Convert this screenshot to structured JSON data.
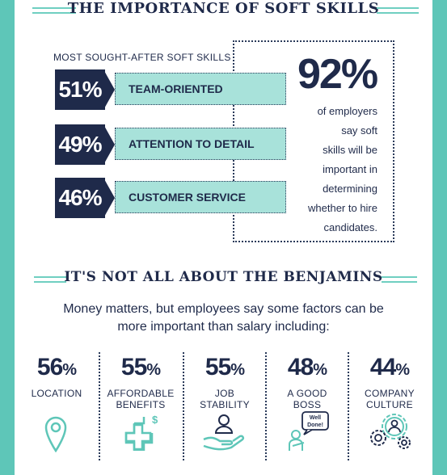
{
  "section1": {
    "title": "THE IMPORTANCE OF SOFT SKILLS"
  },
  "skills_label": "MOST SOUGHT-AFTER SOFT SKILLS",
  "chart_data": {
    "type": "bar",
    "categories": [
      "TEAM-ORIENTED",
      "ATTENTION TO DETAIL",
      "CUSTOMER SERVICE"
    ],
    "values": [
      51,
      49,
      46
    ],
    "value_labels": [
      "51%",
      "49%",
      "46%"
    ],
    "title": "MOST SOUGHT-AFTER SOFT SKILLS"
  },
  "callout": {
    "big": "92%",
    "lines": [
      "of employers",
      "say soft",
      "skills will be",
      "important in",
      "determining",
      "whether to hire",
      "candidates."
    ]
  },
  "section2": {
    "title": "IT'S NOT ALL ABOUT THE BENJAMINS",
    "intro_line1": "Money matters, but employees say some factors can be",
    "intro_line2": "more important than salary including:"
  },
  "factors": [
    {
      "num": "56",
      "pct": "%",
      "label1": "LOCATION",
      "label2": "",
      "icon": "location-pin-icon"
    },
    {
      "num": "55",
      "pct": "%",
      "label1": "AFFORDABLE",
      "label2": "BENEFITS",
      "icon": "medical-cross-dollar-icon"
    },
    {
      "num": "55",
      "pct": "%",
      "label1": "JOB",
      "label2": "STABILITY",
      "icon": "hand-holding-person-icon"
    },
    {
      "num": "48",
      "pct": "%",
      "label1": "A GOOD",
      "label2": "BOSS",
      "icon": "well-done-boss-icon"
    },
    {
      "num": "44",
      "pct": "%",
      "label1": "COMPANY",
      "label2": "CULTURE",
      "icon": "gears-person-icon"
    }
  ],
  "boss_bubble": {
    "line1": "Well",
    "line2": "Done!"
  },
  "colors": {
    "navy": "#1f2a4a",
    "teal": "#5ec6b8",
    "light_teal": "#a8e2da"
  }
}
